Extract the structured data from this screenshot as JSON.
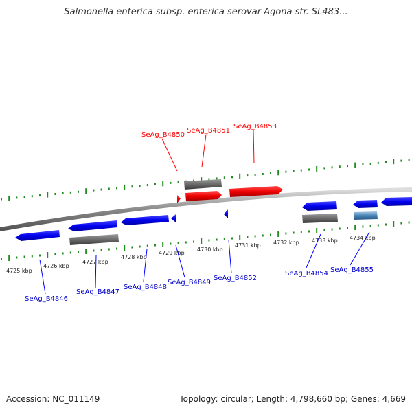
{
  "title": "Salmonella enterica subsp. enterica serovar Agona str. SL483...",
  "footer": {
    "accession": "Accession: NC_011149",
    "summary": "Topology: circular; Length: 4,798,660 bp; Genes: 4,669"
  },
  "colors": {
    "forward_gene": "#ff0000",
    "reverse_gene": "#0000ff",
    "gray_feature": "#666666",
    "steel_feature": "#4682b4",
    "tick": "#228b22",
    "axis": "#999999"
  },
  "kbp_labels": [
    "4725 kbp",
    "4726 kbp",
    "4727 kbp",
    "4728 kbp",
    "4729 kbp",
    "4730 kbp",
    "4731 kbp",
    "4732 kbp",
    "4733 kbp",
    "4734 kbp"
  ],
  "top_labels": [
    "SeAg_B4850",
    "SeAg_B4851",
    "SeAg_B4853"
  ],
  "bottom_labels": [
    "SeAg_B4846",
    "SeAg_B4847",
    "SeAg_B4848",
    "SeAg_B4849",
    "SeAg_B4852",
    "SeAg_B4854",
    "SeAg_B4855"
  ]
}
